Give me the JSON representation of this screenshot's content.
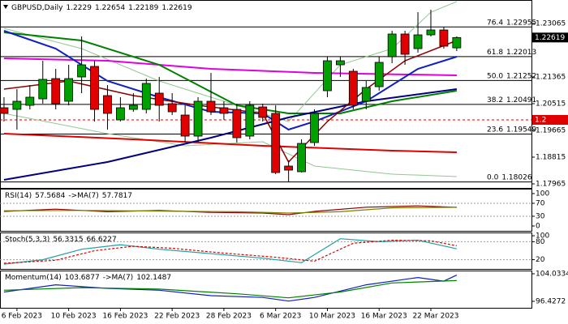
{
  "chart_data": {
    "type": "candlestick",
    "title": {
      "symbol": "GBPUSD,Daily",
      "open": 1.2229,
      "high": 1.22654,
      "low": 1.22189,
      "close": 1.22619
    },
    "categories": [
      null,
      "6 Feb 2023",
      null,
      null,
      null,
      "10 Feb 2023",
      null,
      null,
      null,
      "16 Feb 2023",
      null,
      null,
      null,
      "22 Feb 2023",
      null,
      null,
      null,
      "28 Feb 2023",
      null,
      null,
      null,
      "6 Mar 2023",
      null,
      null,
      null,
      "10 Mar 2023",
      null,
      null,
      null,
      "16 Mar 2023",
      null,
      null,
      null,
      "22 Mar 2023",
      null,
      null
    ],
    "open": [
      1.20386,
      1.20334,
      1.20463,
      1.20669,
      1.21313,
      1.20592,
      1.21365,
      1.217,
      1.20772,
      1.2,
      1.20334,
      1.20334,
      1.2085,
      1.20515,
      1.20154,
      1.19484,
      1.20592,
      1.20386,
      1.20334,
      1.19484,
      1.20412,
      1.20206,
      1.18531,
      1.18351,
      1.19278,
      1.20927,
      1.21751,
      1.21545,
      1.20592,
      1.21056,
      1.22009,
      1.2273,
      1.22266,
      1.22704,
      1.22859,
      1.2229
    ],
    "high": [
      1.20721,
      1.20978,
      1.21107,
      1.2188,
      1.21622,
      1.21751,
      1.22653,
      1.2188,
      1.21107,
      1.20721,
      1.2085,
      1.21313,
      1.21365,
      1.2085,
      1.20463,
      1.20721,
      1.21494,
      1.20592,
      1.20515,
      1.20592,
      1.20515,
      1.20463,
      1.18712,
      1.19381,
      1.20334,
      1.22009,
      1.22009,
      1.21622,
      1.21236,
      1.22009,
      1.22833,
      1.22833,
      1.23426,
      1.23503,
      1.22962,
      1.22654
    ],
    "low": [
      1.19948,
      1.1969,
      1.20334,
      1.20515,
      1.20334,
      1.20463,
      1.2085,
      1.19948,
      1.1969,
      1.19948,
      1.20257,
      1.20206,
      1.19948,
      1.20154,
      1.19304,
      1.19304,
      1.20154,
      1.2,
      1.19278,
      1.19381,
      1.19948,
      1.18274,
      1.18026,
      1.18325,
      1.19175,
      1.20721,
      1.21365,
      1.20334,
      1.20334,
      1.20927,
      1.21803,
      1.21751,
      1.22138,
      1.22653,
      1.22266,
      1.22189
    ],
    "close": [
      1.20206,
      1.20592,
      1.20721,
      1.21288,
      1.20515,
      1.21313,
      1.21751,
      1.20334,
      1.20206,
      1.20386,
      1.20463,
      1.21159,
      1.20463,
      1.20257,
      1.19484,
      1.20592,
      1.20257,
      1.20206,
      1.19433,
      1.20463,
      1.20077,
      1.18325,
      1.18402,
      1.19252,
      1.20206,
      1.2188,
      1.2188,
      1.20463,
      1.2103,
      1.21829,
      1.2273,
      1.22086,
      1.22704,
      1.22859,
      1.22344,
      1.22619
    ],
    "up_color": "#00a000",
    "down_color": "#e00000",
    "xlim": [
      -0.31,
      40.78
    ],
    "ylim": [
      1.17836,
      1.23812
    ],
    "yticks": [
      1.23065,
      1.21365,
      1.20515,
      1.19665,
      1.18815,
      1.17965
    ],
    "overlays": [
      {
        "color": "#90c890",
        "width": 1,
        "x": [
          0,
          6,
          12,
          18,
          22,
          26,
          30,
          33,
          35
        ],
        "values": [
          1.2291,
          1.22266,
          1.21236,
          1.20463,
          1.19948,
          1.21751,
          1.22266,
          1.23426,
          1.23761
        ]
      },
      {
        "color": "#90c890",
        "width": 1,
        "x": [
          0,
          8,
          14,
          20,
          24,
          30,
          35
        ],
        "values": [
          1.20206,
          1.19562,
          1.19175,
          1.19304,
          1.18531,
          1.18274,
          1.18196
        ]
      },
      {
        "color": "#e00000",
        "width": 2,
        "x": [
          0,
          10,
          20,
          30,
          35
        ],
        "values": [
          1.19562,
          1.19381,
          1.19175,
          1.19021,
          1.18969
        ]
      },
      {
        "color": "#e000e0",
        "width": 2,
        "x": [
          0,
          8,
          16,
          24,
          35
        ],
        "values": [
          1.21957,
          1.2188,
          1.21622,
          1.21494,
          1.21416
        ]
      },
      {
        "color": "#008000",
        "width": 2,
        "x": [
          0,
          6,
          12,
          18,
          22,
          26,
          30,
          35
        ],
        "values": [
          1.22782,
          1.22524,
          1.21751,
          1.20463,
          1.20206,
          1.20206,
          1.20592,
          1.20927
        ]
      },
      {
        "color": "#000080",
        "width": 2,
        "x": [
          0,
          8,
          16,
          22,
          28,
          35
        ],
        "values": [
          1.18093,
          1.1866,
          1.19433,
          1.20077,
          1.20592,
          1.20978
        ]
      },
      {
        "color": "#1020c0",
        "width": 2,
        "x": [
          0,
          4,
          8,
          12,
          16,
          20,
          22,
          24,
          28,
          32,
          35
        ],
        "values": [
          1.22833,
          1.22266,
          1.21236,
          1.20721,
          1.20257,
          1.20206,
          1.1969,
          1.19948,
          1.20592,
          1.21622,
          1.22009
        ]
      },
      {
        "color": "#8b0000",
        "width": 1.5,
        "x": [
          0,
          5,
          10,
          15,
          20,
          22,
          25,
          28,
          31,
          35
        ],
        "values": [
          1.20978,
          1.21236,
          1.20772,
          1.20463,
          1.20206,
          1.1866,
          1.19948,
          1.20978,
          1.2188,
          1.22524
        ]
      }
    ],
    "fib_levels": [
      {
        "ratio": "76.4",
        "price": 1.22955
      },
      {
        "ratio": "61.8",
        "price": 1.22013
      },
      {
        "ratio": "50.0",
        "price": 1.21252
      },
      {
        "ratio": "38.2",
        "price": 1.20491
      },
      {
        "ratio": "23.6",
        "price": 1.19549
      },
      {
        "ratio": "0.0",
        "price": 1.18026
      }
    ],
    "level_line": {
      "value": 1.2,
      "color": "#e00000"
    },
    "last_price": {
      "value": 1.22619,
      "color": "#000000"
    },
    "panels": [
      {
        "label": "RSI(14)",
        "value": 57.5684,
        "ma_label": "->MA(7)",
        "ma_value": 57.7817,
        "ylim": [
          -15,
          115
        ],
        "yticks": [
          100,
          70,
          30,
          0
        ],
        "levels": [
          70,
          30
        ],
        "series": [
          {
            "color": "#8b0000",
            "dash": false,
            "x": [
              0,
              4,
              8,
              12,
              16,
              20,
              22,
              24,
              28,
              32,
              35
            ],
            "values": [
              45,
              52,
              44,
              48,
              42,
              40,
              35,
              45,
              58,
              62,
              57.5684
            ]
          },
          {
            "color": "#808000",
            "dash": false,
            "x": [
              0,
              6,
              12,
              18,
              22,
              26,
              30,
              35
            ],
            "values": [
              47,
              48,
              46,
              44,
              40,
              44,
              56,
              57.7817
            ]
          }
        ]
      },
      {
        "label": "Stoch(5,3,3)",
        "value": 56.3315,
        "ma_label": null,
        "ma_value": 66.6227,
        "ylim": [
          -11,
          111
        ],
        "yticks": [
          100,
          80,
          20
        ],
        "levels": [
          80,
          20
        ],
        "series": [
          {
            "color": "#20a0a0",
            "dash": false,
            "x": [
              0,
              3,
              6,
              9,
              12,
              16,
              20,
              23,
              26,
              29,
              32,
              35
            ],
            "values": [
              5,
              20,
              55,
              70,
              55,
              40,
              25,
              10,
              90,
              80,
              85,
              56.3315
            ]
          },
          {
            "color": "#e00000",
            "dash": true,
            "x": [
              0,
              4,
              7,
              10,
              13,
              17,
              21,
              24,
              27,
              30,
              33,
              35
            ],
            "values": [
              8,
              18,
              50,
              65,
              58,
              42,
              28,
              15,
              75,
              85,
              83,
              66.6227
            ]
          }
        ]
      },
      {
        "label": "Momentum(14)",
        "value": 103.6877,
        "ma_label": "->MA(7)",
        "ma_value": 102.1487,
        "ylim": [
          94.64,
          104.93
        ],
        "yticks": [
          104.0334,
          96.4272
        ],
        "levels": [],
        "series": [
          {
            "color": "#1020c0",
            "dash": false,
            "x": [
              0,
              4,
              8,
              12,
              16,
              20,
              22,
              24,
              28,
              32,
              34,
              35
            ],
            "values": [
              99,
              101,
              100,
              99.5,
              98,
              97.5,
              96.5,
              97.5,
              101,
              103,
              102,
              103.6877
            ]
          },
          {
            "color": "#008000",
            "dash": false,
            "x": [
              0,
              6,
              12,
              18,
              22,
              26,
              30,
              35
            ],
            "values": [
              99.5,
              100.2,
              99.8,
              98.5,
              97.4,
              99,
              101.5,
              102.1487
            ]
          }
        ]
      }
    ]
  }
}
